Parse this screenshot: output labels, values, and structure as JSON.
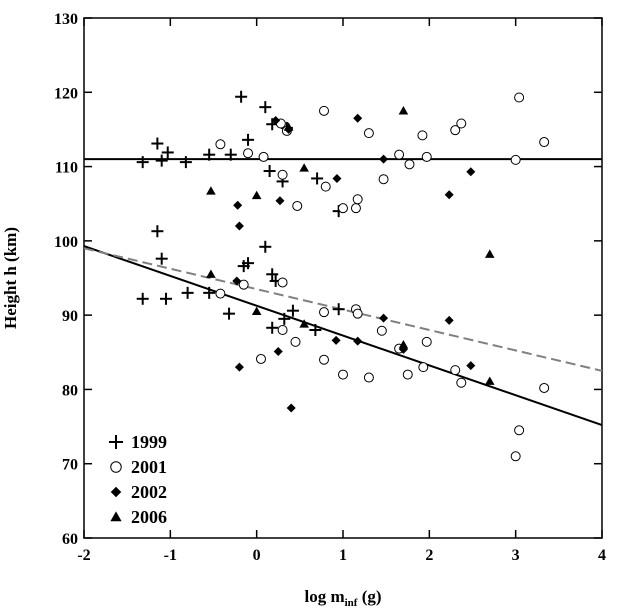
{
  "chart_data": {
    "type": "scatter",
    "xlabel_main": "log m",
    "xlabel_sub": "inf",
    "xlabel_unit": " (g)",
    "ylabel": "Height h (km)",
    "xlim": [
      -2,
      4
    ],
    "ylim": [
      60,
      130
    ],
    "xticks": [
      -2,
      -1,
      0,
      1,
      2,
      3,
      4
    ],
    "xtick_labels": [
      "-2",
      "-1",
      "0",
      "1",
      "2",
      "3",
      "4"
    ],
    "yticks": [
      60,
      70,
      80,
      90,
      100,
      110,
      120,
      130
    ],
    "ytick_labels": [
      "60",
      "70",
      "80",
      "90",
      "100",
      "110",
      "120",
      "130"
    ],
    "grid": false,
    "legend_position": "bottom-left",
    "series": [
      {
        "name": "1999",
        "marker": "plus",
        "points": [
          [
            -1.32,
            110.6
          ],
          [
            -1.15,
            113.1
          ],
          [
            -1.1,
            110.8
          ],
          [
            -1.03,
            111.9
          ],
          [
            -0.82,
            110.6
          ],
          [
            -0.55,
            111.6
          ],
          [
            -0.3,
            111.6
          ],
          [
            -0.18,
            119.4
          ],
          [
            -0.1,
            113.6
          ],
          [
            0.1,
            118.0
          ],
          [
            0.15,
            109.4
          ],
          [
            0.18,
            115.7
          ],
          [
            0.3,
            108.0
          ],
          [
            0.35,
            115.2
          ],
          [
            0.7,
            108.4
          ],
          [
            0.95,
            104.0
          ],
          [
            -1.15,
            101.3
          ],
          [
            -1.1,
            97.6
          ],
          [
            -0.15,
            96.6
          ],
          [
            -0.1,
            97.0
          ],
          [
            0.1,
            99.2
          ],
          [
            0.18,
            95.5
          ],
          [
            0.22,
            94.6
          ],
          [
            -1.32,
            92.2
          ],
          [
            -1.05,
            92.2
          ],
          [
            -0.8,
            93.0
          ],
          [
            -0.55,
            93.0
          ],
          [
            -0.32,
            90.2
          ],
          [
            0.18,
            88.3
          ],
          [
            0.32,
            89.5
          ],
          [
            0.42,
            90.6
          ],
          [
            0.68,
            88.0
          ],
          [
            0.95,
            90.8
          ]
        ]
      },
      {
        "name": "2001",
        "marker": "open-circle",
        "points": [
          [
            -0.42,
            113.0
          ],
          [
            -0.1,
            111.8
          ],
          [
            0.08,
            111.3
          ],
          [
            0.28,
            115.8
          ],
          [
            0.35,
            114.8
          ],
          [
            0.3,
            108.9
          ],
          [
            0.47,
            104.7
          ],
          [
            0.78,
            117.5
          ],
          [
            0.8,
            107.3
          ],
          [
            1.0,
            104.4
          ],
          [
            1.15,
            104.4
          ],
          [
            1.17,
            105.6
          ],
          [
            1.3,
            114.5
          ],
          [
            1.47,
            108.3
          ],
          [
            1.65,
            111.6
          ],
          [
            1.77,
            110.3
          ],
          [
            1.92,
            114.2
          ],
          [
            1.97,
            111.3
          ],
          [
            2.3,
            114.9
          ],
          [
            2.37,
            115.8
          ],
          [
            3.0,
            110.9
          ],
          [
            3.04,
            119.3
          ],
          [
            3.33,
            113.3
          ],
          [
            -0.42,
            92.9
          ],
          [
            -0.15,
            94.1
          ],
          [
            0.05,
            84.1
          ],
          [
            0.3,
            88.0
          ],
          [
            0.3,
            94.4
          ],
          [
            0.45,
            86.4
          ],
          [
            0.78,
            90.4
          ],
          [
            0.78,
            84.0
          ],
          [
            1.0,
            82.0
          ],
          [
            1.15,
            90.8
          ],
          [
            1.17,
            90.2
          ],
          [
            1.3,
            81.6
          ],
          [
            1.45,
            87.9
          ],
          [
            1.75,
            82.0
          ],
          [
            1.93,
            83.0
          ],
          [
            1.97,
            86.4
          ],
          [
            2.3,
            82.6
          ],
          [
            2.37,
            80.9
          ],
          [
            3.0,
            71.0
          ],
          [
            3.04,
            74.5
          ],
          [
            3.33,
            80.2
          ],
          [
            1.65,
            85.5
          ]
        ]
      },
      {
        "name": "2002",
        "marker": "filled-diamond",
        "points": [
          [
            -0.22,
            104.8
          ],
          [
            -0.2,
            102.0
          ],
          [
            0.22,
            116.2
          ],
          [
            0.27,
            105.4
          ],
          [
            0.37,
            115.0
          ],
          [
            0.93,
            108.4
          ],
          [
            1.17,
            116.5
          ],
          [
            1.47,
            111.0
          ],
          [
            2.23,
            106.2
          ],
          [
            2.48,
            109.3
          ],
          [
            -0.2,
            83.0
          ],
          [
            -0.23,
            94.6
          ],
          [
            0.25,
            85.1
          ],
          [
            0.4,
            77.5
          ],
          [
            0.92,
            86.6
          ],
          [
            1.17,
            86.5
          ],
          [
            1.47,
            89.6
          ],
          [
            1.7,
            85.4
          ],
          [
            2.23,
            89.3
          ],
          [
            2.48,
            83.2
          ]
        ]
      },
      {
        "name": "2006",
        "marker": "filled-triangle",
        "points": [
          [
            -0.53,
            106.7
          ],
          [
            0.0,
            106.1
          ],
          [
            0.37,
            115.3
          ],
          [
            0.55,
            109.8
          ],
          [
            1.7,
            117.5
          ],
          [
            -0.53,
            95.5
          ],
          [
            0.0,
            90.5
          ],
          [
            0.55,
            88.8
          ],
          [
            1.7,
            86.0
          ],
          [
            2.7,
            98.2
          ],
          [
            2.7,
            81.1
          ]
        ]
      }
    ],
    "lines": [
      {
        "style": "solid",
        "color": "#000000",
        "x": [
          -2,
          4
        ],
        "y": [
          111.0,
          111.0
        ]
      },
      {
        "style": "solid",
        "color": "#000000",
        "x": [
          -2,
          4
        ],
        "y": [
          99.3,
          75.2
        ]
      },
      {
        "style": "dashed",
        "color": "#808080",
        "x": [
          -2,
          4
        ],
        "y": [
          99.0,
          82.5
        ]
      }
    ]
  }
}
